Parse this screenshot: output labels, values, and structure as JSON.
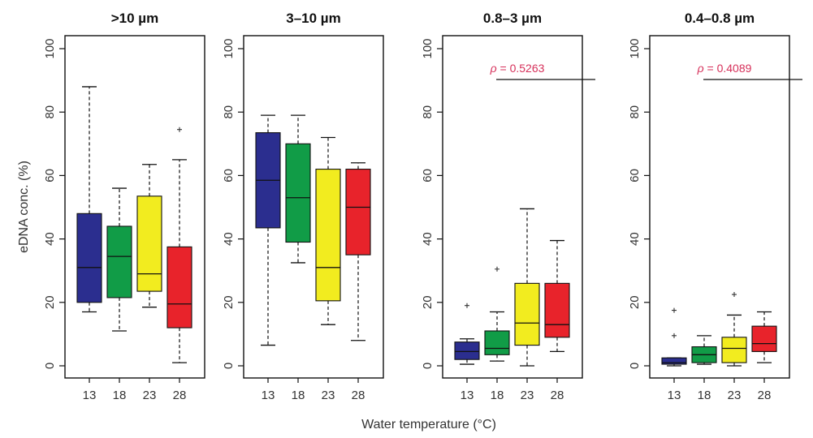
{
  "chart_data": {
    "type": "boxplot",
    "xlabel": "Water temperature (°C)",
    "ylabel": "eDNA conc. (%)",
    "categories": [
      "13",
      "18",
      "23",
      "28"
    ],
    "colors": [
      "#2b2e8f",
      "#119c47",
      "#f2ec1f",
      "#e8232b"
    ],
    "ylim": [
      0,
      100
    ],
    "yticks": [
      "0",
      "20",
      "40",
      "60",
      "80",
      "100"
    ],
    "panels": [
      {
        "title": ">10 µm",
        "annotation": null,
        "boxes": [
          {
            "min": 17,
            "q1": 20,
            "median": 31,
            "q3": 48,
            "max": 88,
            "outliers": []
          },
          {
            "min": 11,
            "q1": 21.5,
            "median": 34.5,
            "q3": 44,
            "max": 56,
            "outliers": []
          },
          {
            "min": 18.5,
            "q1": 23.5,
            "median": 29,
            "q3": 53.5,
            "max": 63.5,
            "outliers": []
          },
          {
            "min": 1,
            "q1": 12,
            "median": 19.5,
            "q3": 37.5,
            "max": 65,
            "outliers": [
              74.5
            ]
          }
        ]
      },
      {
        "title": "3–10 µm",
        "annotation": null,
        "boxes": [
          {
            "min": 6.5,
            "q1": 43.5,
            "median": 58.5,
            "q3": 73.5,
            "max": 79,
            "outliers": []
          },
          {
            "min": 32.5,
            "q1": 39,
            "median": 53,
            "q3": 70,
            "max": 79,
            "outliers": []
          },
          {
            "min": 13,
            "q1": 20.5,
            "median": 31,
            "q3": 62,
            "max": 72,
            "outliers": []
          },
          {
            "min": 8,
            "q1": 35,
            "median": 50,
            "q3": 62,
            "max": 64,
            "outliers": []
          }
        ]
      },
      {
        "title": "0.8–3 µm",
        "annotation": {
          "symbol": "ρ",
          "text": " = 0.5263"
        },
        "boxes": [
          {
            "min": 0.5,
            "q1": 2,
            "median": 4.5,
            "q3": 7.5,
            "max": 8.5,
            "outliers": [
              19
            ]
          },
          {
            "min": 1.5,
            "q1": 3.5,
            "median": 5.5,
            "q3": 11,
            "max": 17,
            "outliers": [
              30.5
            ]
          },
          {
            "min": 0,
            "q1": 6.5,
            "median": 13.5,
            "q3": 26,
            "max": 49.5,
            "outliers": []
          },
          {
            "min": 4.5,
            "q1": 9,
            "median": 13,
            "q3": 26,
            "max": 39.5,
            "outliers": []
          }
        ]
      },
      {
        "title": "0.4–0.8 µm",
        "annotation": {
          "symbol": "ρ",
          "text": " = 0.4089"
        },
        "boxes": [
          {
            "min": 0,
            "q1": 0.5,
            "median": 1,
            "q3": 2.5,
            "max": 2.5,
            "outliers": [
              9.5,
              17.5
            ]
          },
          {
            "min": 0.5,
            "q1": 1,
            "median": 3.5,
            "q3": 6,
            "max": 9.5,
            "outliers": []
          },
          {
            "min": 0,
            "q1": 1,
            "median": 5.5,
            "q3": 9,
            "max": 16,
            "outliers": [
              22.5
            ]
          },
          {
            "min": 1,
            "q1": 4.5,
            "median": 7,
            "q3": 12.5,
            "max": 17,
            "outliers": []
          }
        ]
      }
    ]
  }
}
